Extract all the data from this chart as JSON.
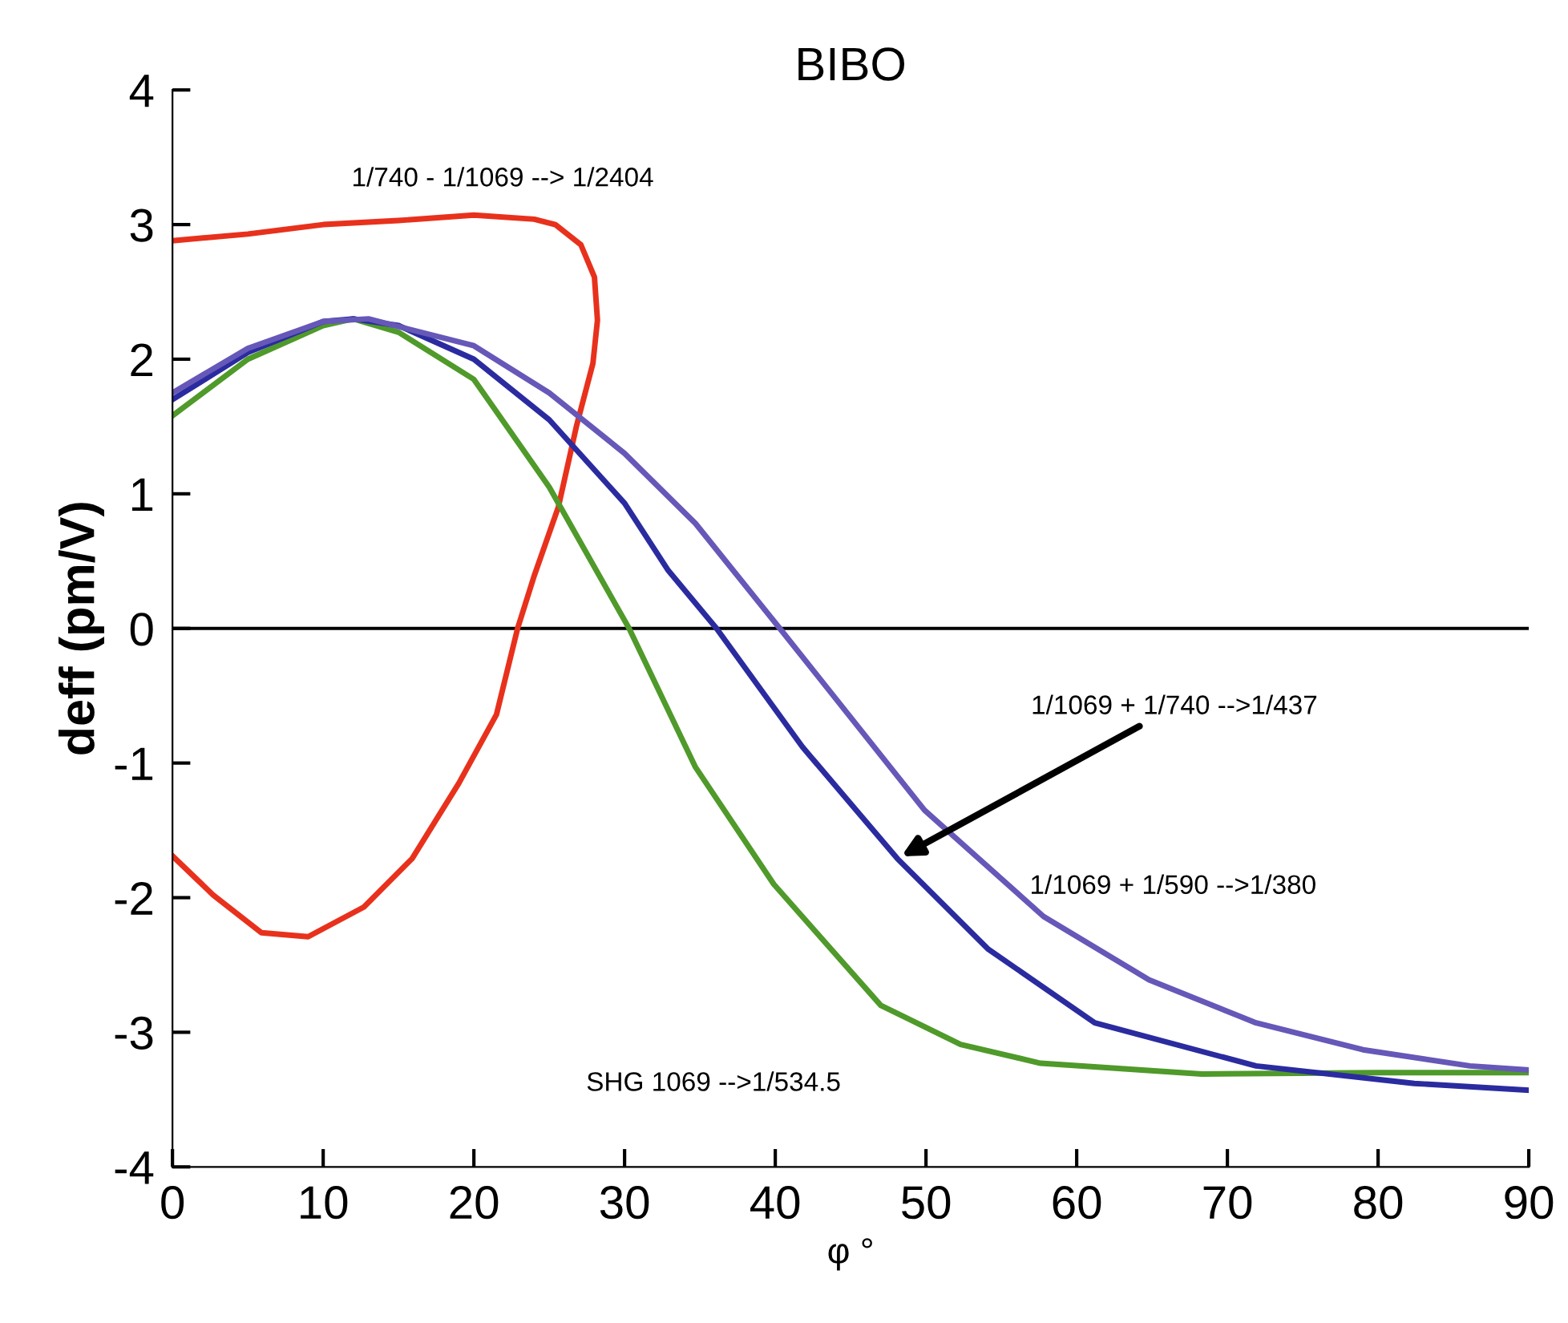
{
  "chart_data": {
    "type": "line",
    "title": "BIBO",
    "xlabel": "φ °",
    "ylabel": "deff (pm/V)",
    "xlim": [
      0,
      90
    ],
    "ylim": [
      -4,
      4
    ],
    "xticks": [
      0,
      10,
      20,
      30,
      40,
      50,
      60,
      70,
      80,
      90
    ],
    "yticks": [
      -4,
      -3,
      -2,
      -1,
      0,
      1,
      2,
      3,
      4
    ],
    "grid": false,
    "legend": false,
    "marker": "none",
    "line_style": "solid",
    "ref_lines": [
      {
        "axis": "y",
        "value": 0,
        "color": "#000000"
      }
    ],
    "series": [
      {
        "color": "#e8311c",
        "x": [
          0,
          5,
          10,
          15,
          20,
          24,
          25.4,
          27.1,
          28.0,
          28.2,
          27.9,
          26.8,
          25.6,
          24.0,
          22.9,
          21.5,
          19.0,
          15.9,
          12.7,
          9.0,
          5.9,
          2.7,
          0
        ],
        "values": [
          2.88,
          2.93,
          3.0,
          3.03,
          3.07,
          3.04,
          3.0,
          2.85,
          2.61,
          2.29,
          1.97,
          1.5,
          0.9,
          0.39,
          0,
          -0.64,
          -1.15,
          -1.71,
          -2.07,
          -2.29,
          -2.26,
          -1.98,
          -1.69
        ]
      },
      {
        "color": "#4f9a2a",
        "x": [
          0,
          5,
          10,
          12,
          15,
          20,
          25,
          30.3,
          34.7,
          39.9,
          47,
          52.3,
          57.6,
          68.3,
          80,
          90
        ],
        "values": [
          1.58,
          2.0,
          2.25,
          2.3,
          2.2,
          1.85,
          1.05,
          0,
          -1.03,
          -1.9,
          -2.8,
          -3.09,
          -3.23,
          -3.31,
          -3.3,
          -3.3
        ]
      },
      {
        "color": "#2b2ba0",
        "x": [
          0,
          5,
          10,
          12,
          15,
          20,
          25,
          30,
          32.9,
          36.1,
          41.8,
          48.1,
          54.1,
          61.2,
          71.9,
          82.4,
          90
        ],
        "values": [
          1.7,
          2.05,
          2.28,
          2.3,
          2.25,
          2.0,
          1.55,
          0.93,
          0.43,
          0,
          -0.88,
          -1.71,
          -2.38,
          -2.93,
          -3.25,
          -3.38,
          -3.43
        ]
      },
      {
        "color": "#6658b8",
        "x": [
          0,
          5,
          10,
          13,
          20,
          25,
          30,
          34.7,
          40.3,
          49.9,
          57.8,
          64.8,
          71.9,
          79,
          86.1,
          90
        ],
        "values": [
          1.75,
          2.08,
          2.28,
          2.3,
          2.1,
          1.75,
          1.3,
          0.78,
          0,
          -1.35,
          -2.14,
          -2.61,
          -2.93,
          -3.13,
          -3.25,
          -3.28
        ]
      }
    ],
    "annotations": [
      "1/740 - 1/1069 --> 1/2404",
      {
        "text": "1/1069 + 1/740 -->1/437",
        "x": 48.1,
        "y": -1.71
      },
      "1/1069 + 1/590 -->1/380",
      "SHG 1069 -->1/534.5"
    ]
  }
}
